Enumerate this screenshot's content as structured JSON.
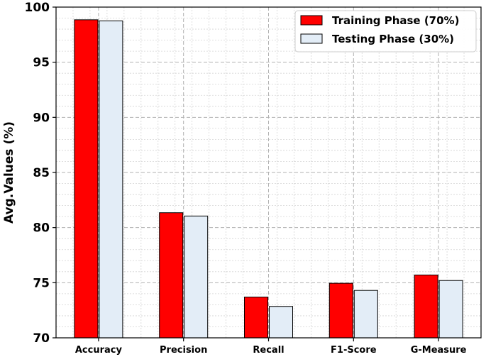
{
  "chart_data": {
    "type": "bar",
    "title": "",
    "xlabel": "",
    "ylabel": "Avg.Values (%)",
    "ylim": [
      70,
      100
    ],
    "yticks": [
      70,
      75,
      80,
      85,
      90,
      95,
      100
    ],
    "grid": true,
    "legend_position": "top-right",
    "categories": [
      "Accuracy",
      "Precision",
      "Recall",
      "F1-Score",
      "G-Measure"
    ],
    "series": [
      {
        "name": "Training Phase (70%)",
        "color": "#ff0000",
        "values": [
          98.85,
          81.35,
          73.7,
          74.95,
          75.7
        ]
      },
      {
        "name": "Testing Phase (30%)",
        "color": "#e3edf7",
        "values": [
          98.75,
          81.05,
          72.85,
          74.3,
          75.2
        ]
      }
    ]
  }
}
